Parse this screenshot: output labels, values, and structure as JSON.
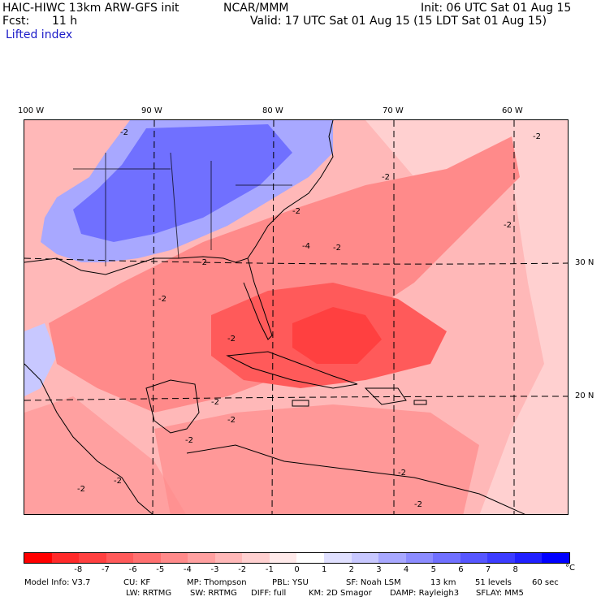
{
  "header": {
    "model": "HAIC-HIWC 13km ARW-GFS init",
    "org": "NCAR/MMM",
    "init": "Init: 06 UTC Sat 01 Aug 15",
    "fcst_label": "Fcst:",
    "fcst_value": "11 h",
    "valid": "Valid: 17 UTC Sat 01 Aug 15 (15 LDT Sat 01 Aug 15)",
    "field": "Lifted index"
  },
  "axes": {
    "lon_labels": [
      "100 W",
      "90 W",
      "80 W",
      "70 W",
      "60 W"
    ],
    "lat_labels": [
      "30 N",
      "20 N"
    ]
  },
  "colorbar": {
    "colors": [
      "#ff0000",
      "#ff2a2a",
      "#ff4040",
      "#ff5a5a",
      "#ff7070",
      "#ff8a8a",
      "#ffa0a0",
      "#ffb8b8",
      "#ffd0d0",
      "#ffeaea",
      "#ffffff",
      "#e0e0ff",
      "#c8c8ff",
      "#a8a8ff",
      "#8c8cff",
      "#7070ff",
      "#5656ff",
      "#3c3cff",
      "#2020ff",
      "#0000ff"
    ],
    "labels": [
      "-8",
      "-7",
      "-6",
      "-5",
      "-4",
      "-3",
      "-2",
      "-1",
      "0",
      "1",
      "2",
      "3",
      "4",
      "5",
      "6",
      "7",
      "8"
    ],
    "unit": "°C"
  },
  "contour_labels": [
    "-2",
    "-2",
    "-2",
    "-2",
    "-2",
    "-2",
    "-2",
    "-2",
    "-2",
    "-2",
    "-2",
    "-2",
    "-2",
    "-2",
    "-2",
    "-4",
    "-2"
  ],
  "footer": {
    "line1": [
      "Model Info: V3.7",
      "CU: KF",
      "MP: Thompson",
      "PBL: YSU",
      "SF: Noah LSM",
      "13 km",
      "51 levels",
      "60 sec"
    ],
    "line2": [
      "LW: RRTMG",
      "SW: RRTMG",
      "DIFF: full",
      "KM: 2D Smagor",
      "DAMP: Rayleigh3",
      "SFLAY: MM5"
    ]
  }
}
